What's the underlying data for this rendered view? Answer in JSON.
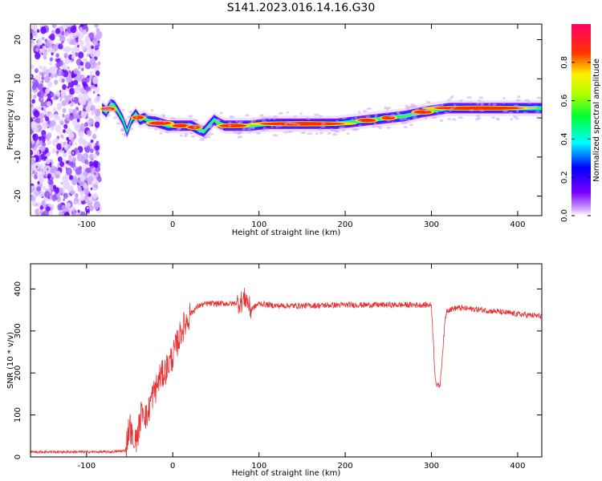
{
  "title": "S141.2023.016.14.16.G30",
  "chart_data": [
    {
      "type": "heatmap",
      "xlabel": "Height of straight line (km)",
      "ylabel": "Frequency (Hz)",
      "xlim": [
        -165,
        428
      ],
      "ylim": [
        -25,
        24
      ],
      "xticks": [
        -100,
        0,
        100,
        200,
        300,
        400
      ],
      "yticks": [
        -20,
        -10,
        0,
        10,
        20
      ],
      "noise_region_x": [
        -165,
        -85
      ],
      "ridge": {
        "x": [
          -82,
          -77,
          -72,
          -68,
          -63,
          -58,
          -53,
          -48,
          -43,
          -38,
          -33,
          -28,
          -20,
          -5,
          10,
          22,
          30,
          36,
          42,
          48,
          55,
          60,
          70,
          90,
          110,
          130,
          160,
          190,
          210,
          230,
          250,
          270,
          290,
          320,
          360,
          400,
          428
        ],
        "y": [
          2.5,
          1.5,
          3.5,
          3.2,
          1.5,
          -0.5,
          -3.5,
          -0.5,
          1.0,
          -0.5,
          0.0,
          -0.8,
          -1.0,
          -2.0,
          -2.0,
          -2.0,
          -3.0,
          -3.5,
          -2.0,
          -0.5,
          -1.5,
          -2.0,
          -2.0,
          -2.0,
          -1.5,
          -1.5,
          -1.5,
          -1.5,
          -1.0,
          -0.5,
          0.0,
          0.5,
          1.5,
          2.5,
          2.5,
          2.5,
          2.5
        ]
      },
      "colorbar": {
        "label": "Normalized spectral amplitude",
        "range": [
          0,
          1
        ],
        "ticks": [
          "0.0",
          "0.2",
          "0.4",
          "0.6",
          "0.8"
        ],
        "tick_values": [
          0,
          0.2,
          0.4,
          0.6,
          0.8
        ]
      }
    },
    {
      "type": "line",
      "xlabel": "Height of straight line (km)",
      "ylabel": "SNR (10 * v/v)",
      "xlim": [
        -165,
        428
      ],
      "ylim": [
        0,
        460
      ],
      "xticks": [
        -100,
        0,
        100,
        200,
        300,
        400
      ],
      "yticks": [
        0,
        100,
        200,
        300,
        400
      ],
      "color": "#e53333",
      "x": [
        -165,
        -130,
        -100,
        -70,
        -55,
        -50,
        -45,
        -40,
        -35,
        -30,
        -25,
        -20,
        -15,
        -10,
        -5,
        0,
        5,
        10,
        15,
        20,
        30,
        40,
        50,
        60,
        70,
        80,
        85,
        90,
        100,
        120,
        150,
        200,
        250,
        300,
        304,
        306,
        310,
        316,
        318,
        330,
        360,
        400,
        428
      ],
      "values": [
        12,
        12,
        12,
        12,
        15,
        80,
        20,
        60,
        120,
        90,
        140,
        160,
        190,
        200,
        220,
        240,
        270,
        300,
        320,
        340,
        360,
        365,
        365,
        365,
        365,
        370,
        380,
        350,
        365,
        360,
        360,
        362,
        362,
        362,
        200,
        170,
        170,
        330,
        350,
        355,
        350,
        340,
        335
      ]
    }
  ]
}
